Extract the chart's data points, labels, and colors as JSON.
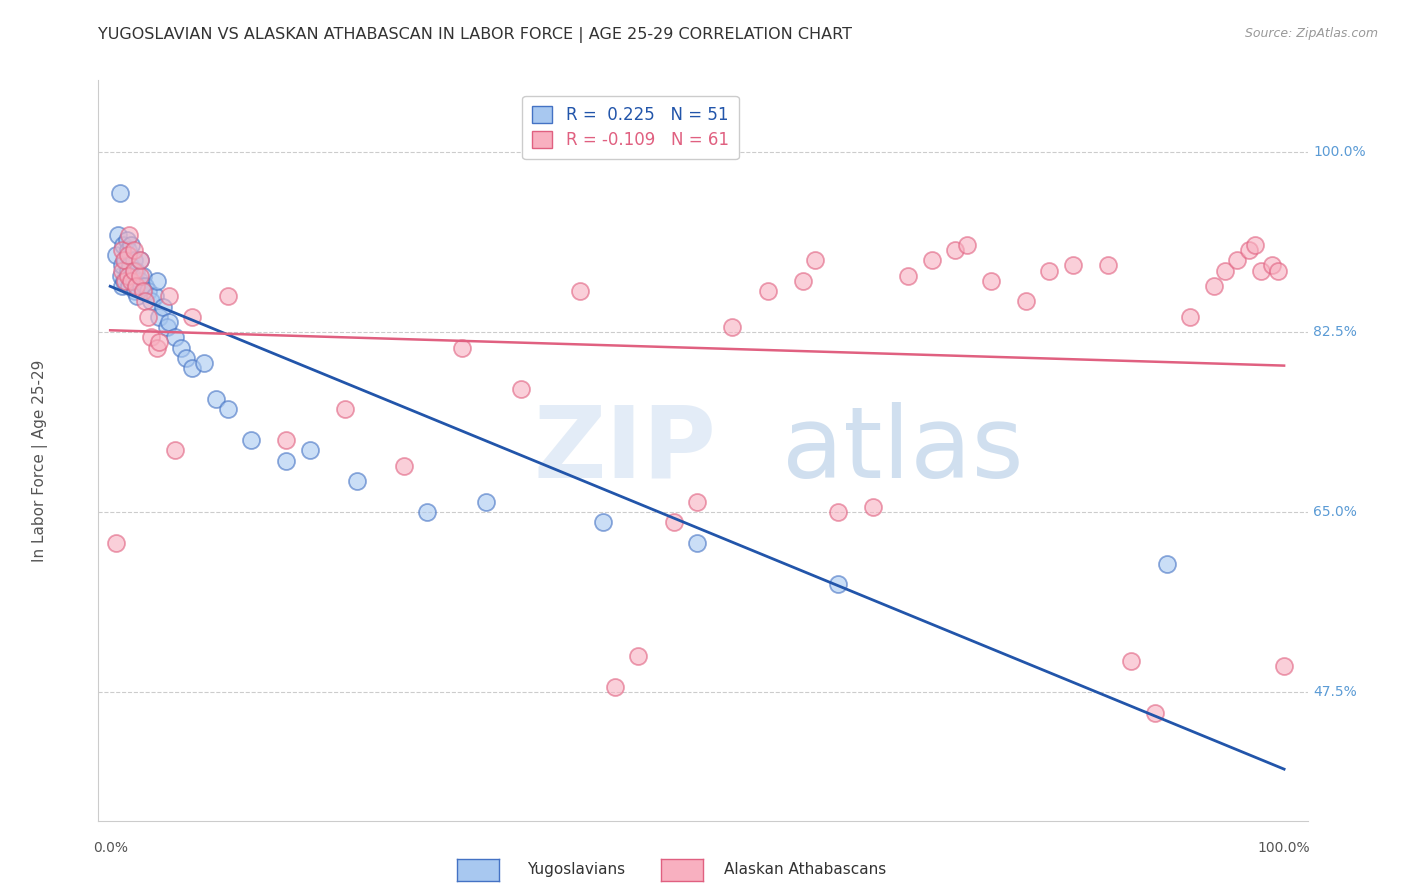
{
  "title": "YUGOSLAVIAN VS ALASKAN ATHABASCAN IN LABOR FORCE | AGE 25-29 CORRELATION CHART",
  "source": "Source: ZipAtlas.com",
  "ylabel": "In Labor Force | Age 25-29",
  "xlim": [
    -0.01,
    1.02
  ],
  "ylim": [
    0.35,
    1.07
  ],
  "legend_blue_r": "0.225",
  "legend_blue_n": "51",
  "legend_pink_r": "-0.109",
  "legend_pink_n": "61",
  "blue_color": "#A8C8F0",
  "pink_color": "#F8B0C0",
  "blue_edge_color": "#4472C4",
  "pink_edge_color": "#E06080",
  "blue_line_color": "#2255AA",
  "pink_line_color": "#E06080",
  "grid_color": "#CCCCCC",
  "background_color": "#FFFFFF",
  "right_axis_color": "#5B9BD5",
  "ytick_vals": [
    0.475,
    0.65,
    0.825,
    1.0
  ],
  "ytick_labels": [
    "47.5%",
    "65.0%",
    "82.5%",
    "100.0%"
  ],
  "blue_x": [
    0.005,
    0.007,
    0.008,
    0.009,
    0.01,
    0.01,
    0.011,
    0.012,
    0.013,
    0.014,
    0.015,
    0.015,
    0.016,
    0.017,
    0.018,
    0.019,
    0.02,
    0.02,
    0.021,
    0.022,
    0.023,
    0.025,
    0.025,
    0.026,
    0.028,
    0.03,
    0.032,
    0.035,
    0.038,
    0.04,
    0.042,
    0.045,
    0.048,
    0.05,
    0.055,
    0.06,
    0.065,
    0.07,
    0.08,
    0.09,
    0.1,
    0.12,
    0.15,
    0.17,
    0.21,
    0.27,
    0.32,
    0.42,
    0.5,
    0.62,
    0.9
  ],
  "blue_y": [
    0.9,
    0.92,
    0.96,
    0.88,
    0.87,
    0.89,
    0.91,
    0.875,
    0.895,
    0.915,
    0.885,
    0.905,
    0.87,
    0.89,
    0.91,
    0.88,
    0.875,
    0.895,
    0.865,
    0.885,
    0.86,
    0.875,
    0.895,
    0.87,
    0.88,
    0.87,
    0.865,
    0.855,
    0.86,
    0.875,
    0.84,
    0.85,
    0.83,
    0.835,
    0.82,
    0.81,
    0.8,
    0.79,
    0.795,
    0.76,
    0.75,
    0.72,
    0.7,
    0.71,
    0.68,
    0.65,
    0.66,
    0.64,
    0.62,
    0.58,
    0.6
  ],
  "pink_x": [
    0.005,
    0.01,
    0.01,
    0.012,
    0.013,
    0.015,
    0.015,
    0.016,
    0.018,
    0.02,
    0.02,
    0.022,
    0.025,
    0.025,
    0.028,
    0.03,
    0.032,
    0.035,
    0.04,
    0.042,
    0.05,
    0.055,
    0.07,
    0.1,
    0.15,
    0.2,
    0.25,
    0.3,
    0.35,
    0.4,
    0.43,
    0.45,
    0.48,
    0.5,
    0.53,
    0.56,
    0.59,
    0.6,
    0.62,
    0.65,
    0.68,
    0.7,
    0.72,
    0.73,
    0.75,
    0.78,
    0.8,
    0.82,
    0.85,
    0.87,
    0.89,
    0.92,
    0.94,
    0.95,
    0.96,
    0.97,
    0.975,
    0.98,
    0.99,
    0.995,
    1.0
  ],
  "pink_y": [
    0.62,
    0.885,
    0.905,
    0.895,
    0.875,
    0.88,
    0.9,
    0.92,
    0.875,
    0.885,
    0.905,
    0.87,
    0.88,
    0.895,
    0.865,
    0.855,
    0.84,
    0.82,
    0.81,
    0.815,
    0.86,
    0.71,
    0.84,
    0.86,
    0.72,
    0.75,
    0.695,
    0.81,
    0.77,
    0.865,
    0.48,
    0.51,
    0.64,
    0.66,
    0.83,
    0.865,
    0.875,
    0.895,
    0.65,
    0.655,
    0.88,
    0.895,
    0.905,
    0.91,
    0.875,
    0.855,
    0.885,
    0.89,
    0.89,
    0.505,
    0.455,
    0.84,
    0.87,
    0.885,
    0.895,
    0.905,
    0.91,
    0.885,
    0.89,
    0.885,
    0.5
  ]
}
